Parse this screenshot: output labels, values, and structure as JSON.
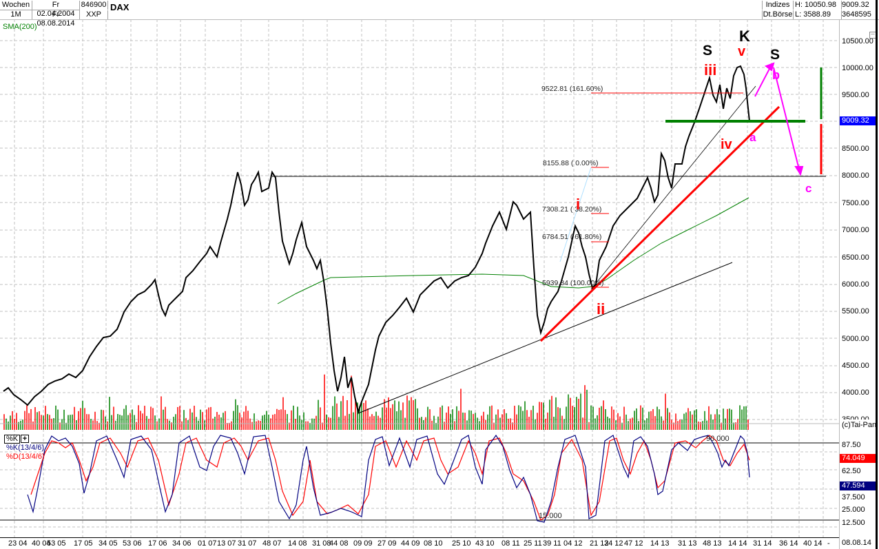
{
  "header": {
    "period": "Wochen",
    "interval": "1M",
    "date_from": "Fr 02.04.2004",
    "date_to": "Fr 08.08.2014",
    "wkn": "846900",
    "exchange_code": "XXP",
    "title": "DAX",
    "category": "Indizes",
    "exchange": "Dt.Börse",
    "high": "H: 10050.98",
    "low": "L: 3588.89",
    "last": "9009.32",
    "volume": "3648595"
  },
  "indicators": {
    "sma_label": "SMA(200)",
    "stoch_k_label": "%K(13/4/6)",
    "stoch_d_label": "%D(13/4/6)",
    "stoch_button": "%K",
    "add_button": "+",
    "copyright": "(c)Tai-Pan"
  },
  "colors": {
    "sma": "#008000",
    "price_tag": "#0000ff",
    "stoch_k": "#000080",
    "stoch_d": "#ff0000",
    "wave_red": "#ff0000",
    "wave_magenta": "#ff00ff",
    "support_green": "#008000",
    "volume_up": "#008000",
    "volume_down": "#ff0000"
  },
  "price_axis": {
    "ticks": [
      "10500.00",
      "10000.00",
      "9500.00",
      "8500.00",
      "8000.00",
      "7500.00",
      "7000.00",
      "6500.00",
      "6000.00",
      "5500.00",
      "5000.00",
      "4500.00",
      "4000.00",
      "3500.00"
    ],
    "current_tag": "9009.32"
  },
  "stoch_axis": {
    "ticks": [
      "87.50",
      "62.50",
      "37.500",
      "25.000",
      "12.500"
    ],
    "d_tag": "74.049",
    "k_tag": "47.594",
    "upper_line": "90.000",
    "lower_line": "15.000"
  },
  "fib_labels": [
    {
      "text": "9522.81 (161.60%)"
    },
    {
      "text": "8155.88 (  0.00%)"
    },
    {
      "text": "7308.21 ( 38.20%)"
    },
    {
      "text": "6784.51 ( 61.80%)"
    },
    {
      "text": "5939.84 (100.00%)"
    }
  ],
  "waves": {
    "s1": "S",
    "k": "K",
    "s2": "S",
    "iii": "iii",
    "v": "v",
    "iv": "iv",
    "i": "i",
    "ii": "ii",
    "a": "a",
    "b": "b",
    "c": "c"
  },
  "x_axis": {
    "ticks": [
      "23 04",
      "40 04",
      "53 05",
      "17 05",
      "34 05",
      "53 06",
      "17 06",
      "34 06",
      "01 07",
      "13 07",
      "31 07",
      "48 07",
      "14 08",
      "31 08",
      "44 08",
      "09 09",
      "27 09",
      "44 09",
      "08 10",
      "25 10",
      "43 10",
      "08 11",
      "25 11",
      "39 11",
      "04 12",
      "21 12",
      "34 12",
      "47 12",
      "14 13",
      "31 13",
      "48 13",
      "14 14",
      "31 14",
      "36 14",
      "40 14",
      "-"
    ],
    "end_date": "08.08.14"
  },
  "chart_data": {
    "type": "candlestick",
    "title": "DAX",
    "timeframe": "weekly",
    "x_range": [
      "02.04.2004",
      "08.08.2014"
    ],
    "ylim": [
      3500,
      10700
    ],
    "high": 10050.98,
    "low": 3588.89,
    "last": 9009.32,
    "approx_closes": [
      {
        "date": "2004-04",
        "value": 3950
      },
      {
        "date": "2004-10",
        "value": 3900
      },
      {
        "date": "2005-04",
        "value": 4250
      },
      {
        "date": "2005-08",
        "value": 4900
      },
      {
        "date": "2006-01",
        "value": 5600
      },
      {
        "date": "2006-05",
        "value": 5600
      },
      {
        "date": "2006-12",
        "value": 6600
      },
      {
        "date": "2007-07",
        "value": 8000
      },
      {
        "date": "2007-08",
        "value": 7400
      },
      {
        "date": "2007-12",
        "value": 8050
      },
      {
        "date": "2008-03",
        "value": 6500
      },
      {
        "date": "2008-06",
        "value": 6500
      },
      {
        "date": "2008-10",
        "value": 4500
      },
      {
        "date": "2009-03",
        "value": 3650
      },
      {
        "date": "2009-09",
        "value": 5600
      },
      {
        "date": "2010-06",
        "value": 6000
      },
      {
        "date": "2010-12",
        "value": 6900
      },
      {
        "date": "2011-05",
        "value": 7500
      },
      {
        "date": "2011-09",
        "value": 5100
      },
      {
        "date": "2012-03",
        "value": 7000
      },
      {
        "date": "2012-06",
        "value": 6000
      },
      {
        "date": "2012-12",
        "value": 7600
      },
      {
        "date": "2013-06",
        "value": 7900
      },
      {
        "date": "2013-12",
        "value": 9500
      },
      {
        "date": "2014-06",
        "value": 10000
      },
      {
        "date": "2014-08",
        "value": 9009
      }
    ],
    "sma200": [
      {
        "date": "2008-03",
        "value": 5650
      },
      {
        "date": "2008-09",
        "value": 6100
      },
      {
        "date": "2011-01",
        "value": 6200
      },
      {
        "date": "2012-08",
        "value": 5950
      },
      {
        "date": "2014-08",
        "value": 7600
      }
    ],
    "horizontal_lines": [
      8000,
      9009.32
    ],
    "fibonacci": [
      {
        "level": "161.60%",
        "value": 9522.81
      },
      {
        "level": "0.00%",
        "value": 8155.88
      },
      {
        "level": "38.20%",
        "value": 7308.21
      },
      {
        "level": "61.80%",
        "value": 6784.51
      },
      {
        "level": "100.00%",
        "value": 5939.84
      }
    ],
    "annotations": [
      "S",
      "K",
      "S",
      "i",
      "ii",
      "iii",
      "iv",
      "v",
      "a",
      "b",
      "c"
    ],
    "stochastic": {
      "k_params": "13/4/6",
      "d_params": "13/4/6",
      "k_last": 47.594,
      "d_last": 74.049,
      "upper": 90,
      "lower": 15,
      "ylim": [
        0,
        100
      ]
    }
  }
}
